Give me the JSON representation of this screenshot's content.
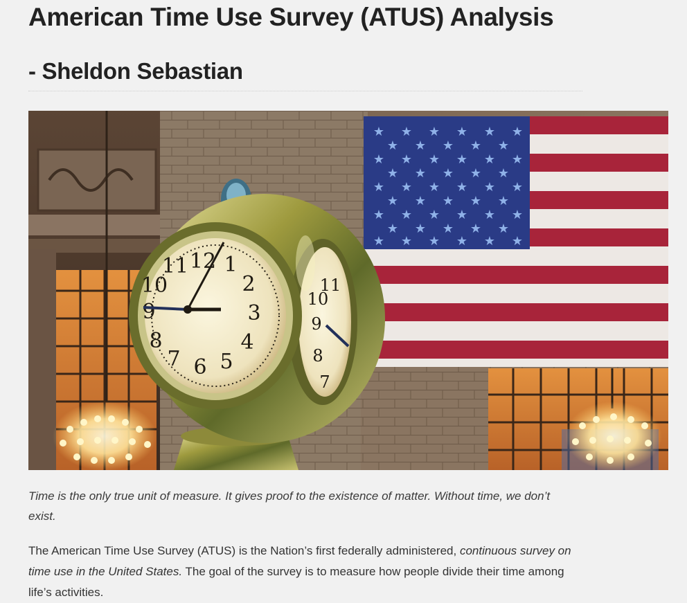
{
  "article": {
    "title": "American Time Use Survey (ATUS) Analysis",
    "subtitle": "- Sheldon Sebastian",
    "hero_image": {
      "icons": [
        "clock-icon",
        "american-flag-icon",
        "chandelier-icon"
      ]
    },
    "quote": "Time is the only true unit of measure. It gives proof to the existence of matter. Without time, we don’t exist.",
    "intro": {
      "part1": "The American Time Use Survey (ATUS) is the Nation’s first federally administered, ",
      "emphasis": "continuous survey on time use in the United States.",
      "part2": " The goal of the survey is to measure how people divide their time among life’s activities."
    }
  }
}
